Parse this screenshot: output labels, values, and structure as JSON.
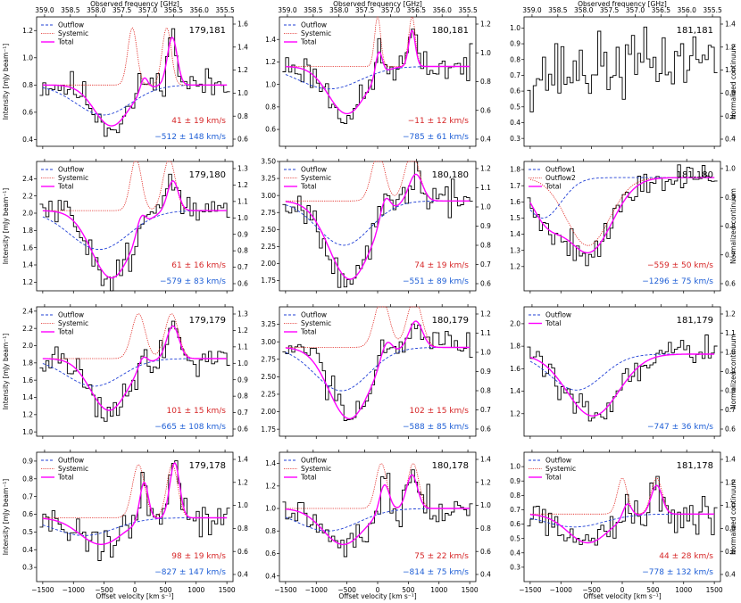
{
  "figure": {
    "top_xlabel": "Observed frequency [GHz]",
    "bottom_xlabel": "Offset velocity [km s⁻¹]",
    "left_ylabel": "Intensity [mJy beam⁻¹]",
    "right_ylabel": "Normalized continuum",
    "freq_ticks": [
      "359.0",
      "358.5",
      "358.0",
      "357.5",
      "357.0",
      "356.5",
      "356.0",
      "355.5"
    ],
    "freq_tick_velocities": [
      -1470,
      -1050,
      -630,
      -210,
      210,
      630,
      1050,
      1470
    ],
    "vel_ticks": [
      -1500,
      -1000,
      -500,
      0,
      500,
      1000,
      1500
    ],
    "xlim": [
      -1600,
      1600
    ],
    "colors": {
      "outflow": "#1f3fd6",
      "systemic": "#e0201b",
      "total": "#ff00ff",
      "data": "#000000",
      "systemic_vel": "#d62728",
      "outflow_vel": "#1f5fd6"
    }
  },
  "chart_data": [
    {
      "type": "line",
      "title": "179,181",
      "ylim": [
        0.35,
        1.3
      ],
      "yticks": [
        0.4,
        0.6,
        0.8,
        1.0,
        1.2
      ],
      "ytick_labels": [
        "0.4",
        "0.6",
        "0.8",
        "1.0",
        "1.2"
      ],
      "rticks": [
        "0.6",
        "0.8",
        "1.0",
        "1.2",
        "1.4",
        "1.6"
      ],
      "cont": 0.8,
      "legend": [
        "Outflow",
        "Systemic",
        "Total"
      ],
      "outflow": [
        {
          "v": -512,
          "sigma": 450,
          "amp": 0.22
        }
      ],
      "systemic": [
        {
          "v": -40,
          "sigma": 75,
          "amp": 0.42
        },
        {
          "v": 520,
          "sigma": 75,
          "amp": 0.42
        }
      ],
      "total_absorption": [
        {
          "v": -380,
          "sigma": 280,
          "amp": 0.3
        }
      ],
      "total_emission": [
        {
          "v": 150,
          "sigma": 60,
          "amp": 0.1
        },
        {
          "v": 610,
          "sigma": 80,
          "amp": 0.35
        }
      ],
      "systemic_vel": "41 ± 19 km/s",
      "outflow_vel": "−512 ± 148 km/s",
      "seed": 11
    },
    {
      "type": "line",
      "title": "180,181",
      "ylim": [
        0.45,
        1.6
      ],
      "yticks": [
        0.6,
        0.8,
        1.0,
        1.2,
        1.4
      ],
      "ytick_labels": [
        "0.6",
        "0.8",
        "1.0",
        "1.2",
        "1.4"
      ],
      "rticks": [
        "0.4",
        "0.6",
        "0.8",
        "1.0",
        "1.2"
      ],
      "cont": 1.16,
      "legend": [
        "Outflow",
        "Systemic",
        "Total"
      ],
      "outflow": [
        {
          "v": -785,
          "sigma": 500,
          "amp": 0.2
        }
      ],
      "systemic": [
        {
          "v": 0,
          "sigma": 50,
          "amp": 0.44
        },
        {
          "v": 560,
          "sigma": 55,
          "amp": 0.44
        }
      ],
      "total_absorption": [
        {
          "v": -500,
          "sigma": 300,
          "amp": 0.42
        }
      ],
      "total_emission": [
        {
          "v": 20,
          "sigma": 55,
          "amp": 0.22
        },
        {
          "v": 560,
          "sigma": 55,
          "amp": 0.32
        }
      ],
      "systemic_vel": "−11 ± 12 km/s",
      "outflow_vel": "−785 ± 61 km/s",
      "seed": 23
    },
    {
      "type": "line",
      "title": "181,181",
      "ylim": [
        0.25,
        1.07
      ],
      "yticks": [
        0.3,
        0.4,
        0.5,
        0.6,
        0.7,
        0.8,
        0.9,
        1.0
      ],
      "ytick_labels": [
        "0.3",
        "0.4",
        "0.5",
        "0.6",
        "0.7",
        "0.8",
        "0.9",
        "1.0"
      ],
      "rticks": [
        "0.4",
        "0.6",
        "0.8",
        "1.0",
        "1.2",
        "1.4"
      ],
      "cont": 0.7,
      "legend": [],
      "outflow": [],
      "systemic": [],
      "total_absorption": [],
      "total_emission": [],
      "systemic_vel": "",
      "outflow_vel": "",
      "seed": 37
    },
    {
      "type": "line",
      "title": "179,180",
      "ylim": [
        1.1,
        2.6
      ],
      "yticks": [
        1.2,
        1.4,
        1.6,
        1.8,
        2.0,
        2.2,
        2.4
      ],
      "ytick_labels": [
        "1.2",
        "1.4",
        "1.6",
        "1.8",
        "2.0",
        "2.2",
        "2.4"
      ],
      "rticks": [
        "0.6",
        "0.7",
        "0.8",
        "0.9",
        "1.0",
        "1.1",
        "1.2",
        "1.3"
      ],
      "cont": 2.03,
      "legend": [
        "Outflow",
        "Systemic",
        "Total"
      ],
      "outflow": [
        {
          "v": -579,
          "sigma": 480,
          "amp": 0.45
        }
      ],
      "systemic": [
        {
          "v": 20,
          "sigma": 90,
          "amp": 0.6
        },
        {
          "v": 560,
          "sigma": 100,
          "amp": 0.6
        }
      ],
      "total_absorption": [
        {
          "v": -380,
          "sigma": 320,
          "amp": 0.78
        }
      ],
      "total_emission": [
        {
          "v": 100,
          "sigma": 70,
          "amp": 0.18
        },
        {
          "v": 620,
          "sigma": 90,
          "amp": 0.35
        }
      ],
      "systemic_vel": "61 ± 16 km/s",
      "outflow_vel": "−579 ± 83 km/s",
      "seed": 51
    },
    {
      "type": "line",
      "title": "180,180",
      "ylim": [
        1.6,
        3.5
      ],
      "yticks": [
        1.75,
        2.0,
        2.25,
        2.5,
        2.75,
        3.0,
        3.25,
        3.5
      ],
      "ytick_labels": [
        "1.75",
        "2.00",
        "2.25",
        "2.50",
        "2.75",
        "3.00",
        "3.25",
        "3.50"
      ],
      "rticks": [
        "0.6",
        "0.7",
        "0.8",
        "0.9",
        "1.0",
        "1.1",
        "1.2"
      ],
      "cont": 2.92,
      "legend": [
        "Outflow",
        "Systemic",
        "Total"
      ],
      "outflow": [
        {
          "v": -551,
          "sigma": 430,
          "amp": 0.65
        }
      ],
      "systemic": [
        {
          "v": 10,
          "sigma": 110,
          "amp": 0.7
        },
        {
          "v": 560,
          "sigma": 120,
          "amp": 0.7
        }
      ],
      "total_absorption": [
        {
          "v": -450,
          "sigma": 340,
          "amp": 1.15
        }
      ],
      "total_emission": [
        {
          "v": 120,
          "sigma": 80,
          "amp": 0.3
        },
        {
          "v": 620,
          "sigma": 110,
          "amp": 0.4
        }
      ],
      "systemic_vel": "74 ± 19 km/s",
      "outflow_vel": "−551 ± 89 km/s",
      "seed": 67
    },
    {
      "type": "line",
      "title": "181,180",
      "ylim": [
        1.05,
        1.85
      ],
      "yticks": [
        1.2,
        1.3,
        1.4,
        1.5,
        1.6,
        1.7,
        1.8
      ],
      "ytick_labels": [
        "1.2",
        "1.3",
        "1.4",
        "1.5",
        "1.6",
        "1.7",
        "1.8"
      ],
      "rticks": [
        "0.6",
        "0.7",
        "0.8",
        "0.9",
        "1.0"
      ],
      "cont": 1.75,
      "legend": [
        "Outflow1",
        "Outflow2",
        "Total"
      ],
      "outflow": [
        {
          "v": -1296,
          "sigma": 300,
          "amp": 0.25
        }
      ],
      "systemic": [
        {
          "v": -559,
          "sigma": 350,
          "amp": 0.42
        }
      ],
      "total_absorption": [
        {
          "v": -1250,
          "sigma": 250,
          "amp": 0.22
        },
        {
          "v": -550,
          "sigma": 380,
          "amp": 0.46
        }
      ],
      "total_emission": [],
      "systemic_vel": "−559 ± 50 km/s",
      "outflow_vel": "−1296 ± 75 km/s",
      "seed": 79
    },
    {
      "type": "line",
      "title": "179,179",
      "ylim": [
        0.95,
        2.45
      ],
      "yticks": [
        1.0,
        1.2,
        1.4,
        1.6,
        1.8,
        2.0,
        2.2,
        2.4
      ],
      "ytick_labels": [
        "1.0",
        "1.2",
        "1.4",
        "1.6",
        "1.8",
        "2.0",
        "2.2",
        "2.4"
      ],
      "rticks": [
        "0.6",
        "0.7",
        "0.8",
        "0.9",
        "1.0",
        "1.1",
        "1.2",
        "1.3"
      ],
      "cont": 1.85,
      "legend": [
        "Outflow",
        "Systemic",
        "Total"
      ],
      "outflow": [
        {
          "v": -665,
          "sigma": 450,
          "amp": 0.32
        }
      ],
      "systemic": [
        {
          "v": 60,
          "sigma": 110,
          "amp": 0.52
        },
        {
          "v": 600,
          "sigma": 110,
          "amp": 0.52
        }
      ],
      "total_absorption": [
        {
          "v": -420,
          "sigma": 300,
          "amp": 0.6
        }
      ],
      "total_emission": [
        {
          "v": 130,
          "sigma": 70,
          "amp": 0.12
        },
        {
          "v": 620,
          "sigma": 100,
          "amp": 0.38
        }
      ],
      "systemic_vel": "101 ± 15 km/s",
      "outflow_vel": "−665 ± 108 km/s",
      "seed": 91
    },
    {
      "type": "line",
      "title": "180,179",
      "ylim": [
        1.65,
        3.5
      ],
      "yticks": [
        1.75,
        2.0,
        2.25,
        2.5,
        2.75,
        3.0,
        3.25
      ],
      "ytick_labels": [
        "1.75",
        "2.00",
        "2.25",
        "2.50",
        "2.75",
        "3.00",
        "3.25"
      ],
      "rticks": [
        "0.6",
        "0.7",
        "0.8",
        "0.9",
        "1.0",
        "1.1",
        "1.2"
      ],
      "cont": 2.92,
      "legend": [
        "Outflow",
        "Systemic",
        "Total"
      ],
      "outflow": [
        {
          "v": -588,
          "sigma": 440,
          "amp": 0.62
        }
      ],
      "systemic": [
        {
          "v": 70,
          "sigma": 120,
          "amp": 0.7
        },
        {
          "v": 600,
          "sigma": 120,
          "amp": 0.7
        }
      ],
      "total_absorption": [
        {
          "v": -460,
          "sigma": 330,
          "amp": 1.02
        }
      ],
      "total_emission": [
        {
          "v": 140,
          "sigma": 90,
          "amp": 0.25
        },
        {
          "v": 620,
          "sigma": 110,
          "amp": 0.38
        }
      ],
      "systemic_vel": "102 ± 15 km/s",
      "outflow_vel": "−588 ± 85 km/s",
      "seed": 103
    },
    {
      "type": "line",
      "title": "181,179",
      "ylim": [
        1.0,
        2.15
      ],
      "yticks": [
        1.2,
        1.4,
        1.6,
        1.8,
        2.0
      ],
      "ytick_labels": [
        "1.2",
        "1.4",
        "1.6",
        "1.8",
        "2.0"
      ],
      "rticks": [
        "0.6",
        "0.7",
        "0.8",
        "0.9",
        "1.0",
        "1.1",
        "1.2"
      ],
      "cont": 1.73,
      "legend": [
        "Outflow",
        "Total"
      ],
      "outflow": [
        {
          "v": -747,
          "sigma": 420,
          "amp": 0.32
        }
      ],
      "systemic": [],
      "total_absorption": [
        {
          "v": -480,
          "sigma": 420,
          "amp": 0.55
        }
      ],
      "total_emission": [],
      "systemic_vel": "",
      "outflow_vel": "−747 ± 36 km/s",
      "seed": 117
    },
    {
      "type": "line",
      "title": "179,178",
      "ylim": [
        0.22,
        0.95
      ],
      "yticks": [
        0.3,
        0.4,
        0.5,
        0.6,
        0.7,
        0.8,
        0.9
      ],
      "ytick_labels": [
        "0.3",
        "0.4",
        "0.5",
        "0.6",
        "0.7",
        "0.8",
        "0.9"
      ],
      "rticks": [
        "0.4",
        "0.6",
        "0.8",
        "1.0",
        "1.2",
        "1.4"
      ],
      "cont": 0.58,
      "legend": [
        "Outflow",
        "Systemic",
        "Total"
      ],
      "outflow": [
        {
          "v": -827,
          "sigma": 500,
          "amp": 0.1
        }
      ],
      "systemic": [
        {
          "v": 60,
          "sigma": 100,
          "amp": 0.3
        },
        {
          "v": 610,
          "sigma": 90,
          "amp": 0.3
        }
      ],
      "total_absorption": [
        {
          "v": -550,
          "sigma": 350,
          "amp": 0.15
        }
      ],
      "total_emission": [
        {
          "v": 150,
          "sigma": 70,
          "amp": 0.22
        },
        {
          "v": 650,
          "sigma": 80,
          "amp": 0.31
        }
      ],
      "systemic_vel": "98 ± 19 km/s",
      "outflow_vel": "−827 ± 147 km/s",
      "seed": 131
    },
    {
      "type": "line",
      "title": "180,178",
      "ylim": [
        0.35,
        1.5
      ],
      "yticks": [
        0.4,
        0.6,
        0.8,
        1.0,
        1.2,
        1.4
      ],
      "ytick_labels": [
        "0.4",
        "0.6",
        "0.8",
        "1.0",
        "1.2",
        "1.4"
      ],
      "rticks": [
        "0.4",
        "0.6",
        "0.8",
        "1.0",
        "1.2",
        "1.4"
      ],
      "cont": 1.0,
      "legend": [
        "Outflow",
        "Systemic",
        "Total"
      ],
      "outflow": [
        {
          "v": -814,
          "sigma": 500,
          "amp": 0.2
        }
      ],
      "systemic": [
        {
          "v": 60,
          "sigma": 90,
          "amp": 0.4
        },
        {
          "v": 580,
          "sigma": 90,
          "amp": 0.4
        }
      ],
      "total_absorption": [
        {
          "v": -560,
          "sigma": 330,
          "amp": 0.32
        }
      ],
      "total_emission": [
        {
          "v": 110,
          "sigma": 80,
          "amp": 0.25
        },
        {
          "v": 560,
          "sigma": 90,
          "amp": 0.3
        }
      ],
      "systemic_vel": "75 ± 22 km/s",
      "outflow_vel": "−814 ± 75 km/s",
      "seed": 149
    },
    {
      "type": "line",
      "title": "181,178",
      "ylim": [
        0.2,
        1.1
      ],
      "yticks": [
        0.3,
        0.4,
        0.5,
        0.6,
        0.7,
        0.8,
        0.9,
        1.0
      ],
      "ytick_labels": [
        "0.3",
        "0.4",
        "0.5",
        "0.6",
        "0.7",
        "0.8",
        "0.9",
        "1.0"
      ],
      "rticks": [
        "0.4",
        "0.6",
        "0.8",
        "1.0",
        "1.2",
        "1.4"
      ],
      "cont": 0.67,
      "legend": [
        "Outflow",
        "Systemic",
        "Total"
      ],
      "outflow": [
        {
          "v": -778,
          "sigma": 480,
          "amp": 0.09
        }
      ],
      "systemic": [
        {
          "v": 0,
          "sigma": 80,
          "amp": 0.25
        },
        {
          "v": 560,
          "sigma": 90,
          "amp": 0.25
        }
      ],
      "total_absorption": [
        {
          "v": -560,
          "sigma": 330,
          "amp": 0.2
        }
      ],
      "total_emission": [
        {
          "v": 80,
          "sigma": 70,
          "amp": 0.1
        },
        {
          "v": 560,
          "sigma": 90,
          "amp": 0.2
        }
      ],
      "systemic_vel": "44 ± 28 km/s",
      "outflow_vel": "−778 ± 132 km/s",
      "seed": 163
    }
  ]
}
